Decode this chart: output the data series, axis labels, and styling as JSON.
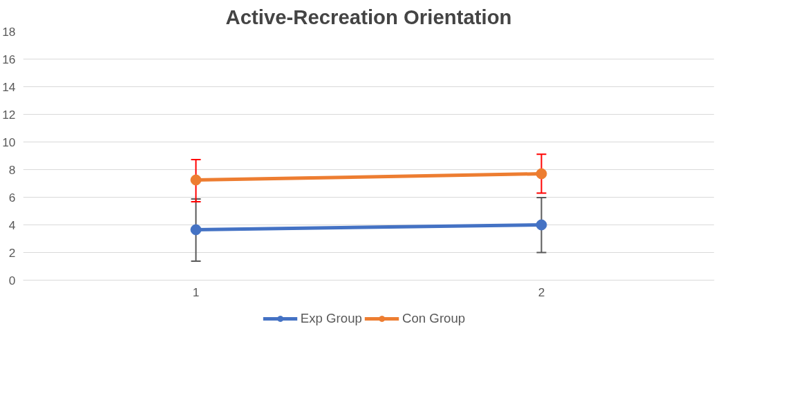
{
  "chart_data": {
    "type": "line",
    "title": "Active-Recreation Orientation",
    "categories": [
      "1",
      "2"
    ],
    "series": [
      {
        "name": "Exp Group",
        "color": "#4472c4",
        "values": [
          3.65,
          4.0
        ],
        "errors": [
          [
            1.38,
            5.88
          ],
          [
            2.0,
            5.97
          ]
        ]
      },
      {
        "name": "Con Group",
        "color": "#ed7d31",
        "values": [
          7.25,
          7.7
        ],
        "errors": [
          [
            5.67,
            8.72
          ],
          [
            6.3,
            9.11
          ]
        ]
      }
    ],
    "ylim": [
      0,
      18
    ],
    "yticks": [
      0,
      2,
      4,
      6,
      8,
      10,
      12,
      14,
      16,
      18
    ],
    "grid": "y",
    "legend": "bottom",
    "marker": "circle",
    "line_style": "solid"
  }
}
